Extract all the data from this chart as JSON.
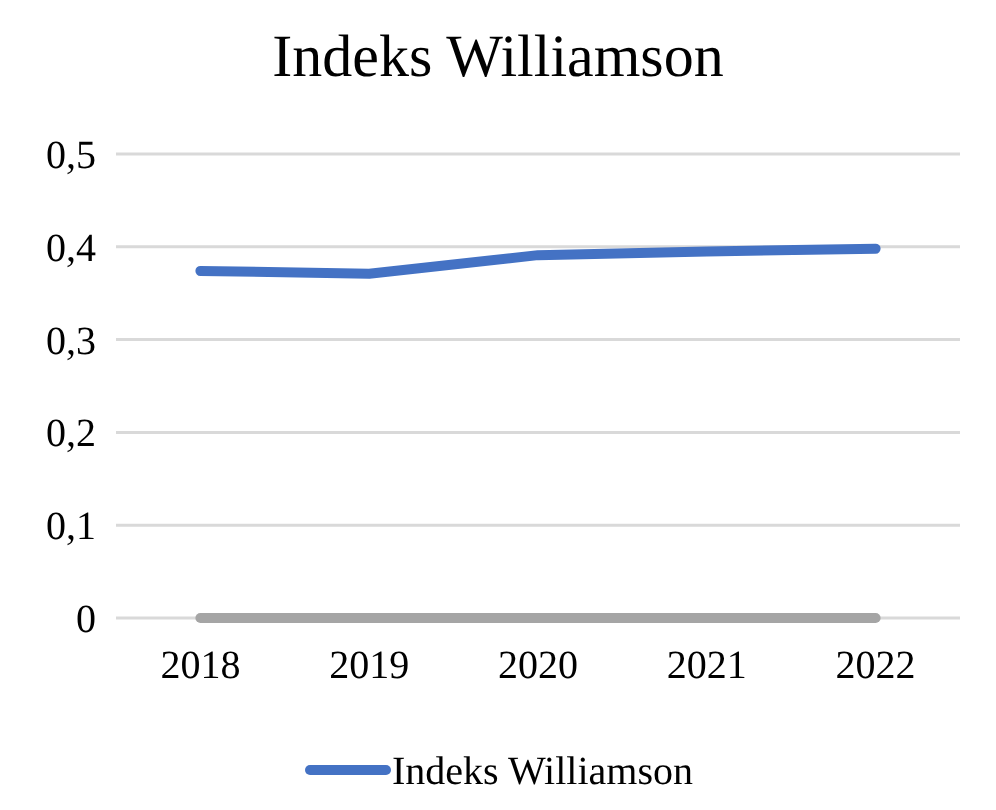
{
  "chart_data": {
    "type": "line",
    "title": "Indeks Williamson",
    "categories": [
      "2018",
      "2019",
      "2020",
      "2021",
      "2022"
    ],
    "series": [
      {
        "name": "Indeks Williamson",
        "color": "#4472c4",
        "values": [
          0.374,
          0.371,
          0.391,
          0.395,
          0.398
        ]
      },
      {
        "color": "#a5a5a5",
        "values": [
          0,
          0,
          0,
          0,
          0
        ]
      }
    ],
    "ylim": [
      0,
      0.5
    ],
    "yticks": [
      {
        "value": 0,
        "label": "0"
      },
      {
        "value": 0.1,
        "label": "0,1"
      },
      {
        "value": 0.2,
        "label": "0,2"
      },
      {
        "value": 0.3,
        "label": "0,3"
      },
      {
        "value": 0.4,
        "label": "0,4"
      },
      {
        "value": 0.5,
        "label": "0,5"
      }
    ],
    "grid": "y",
    "legend": "bottom",
    "marker": "none",
    "line_style": "solid"
  }
}
